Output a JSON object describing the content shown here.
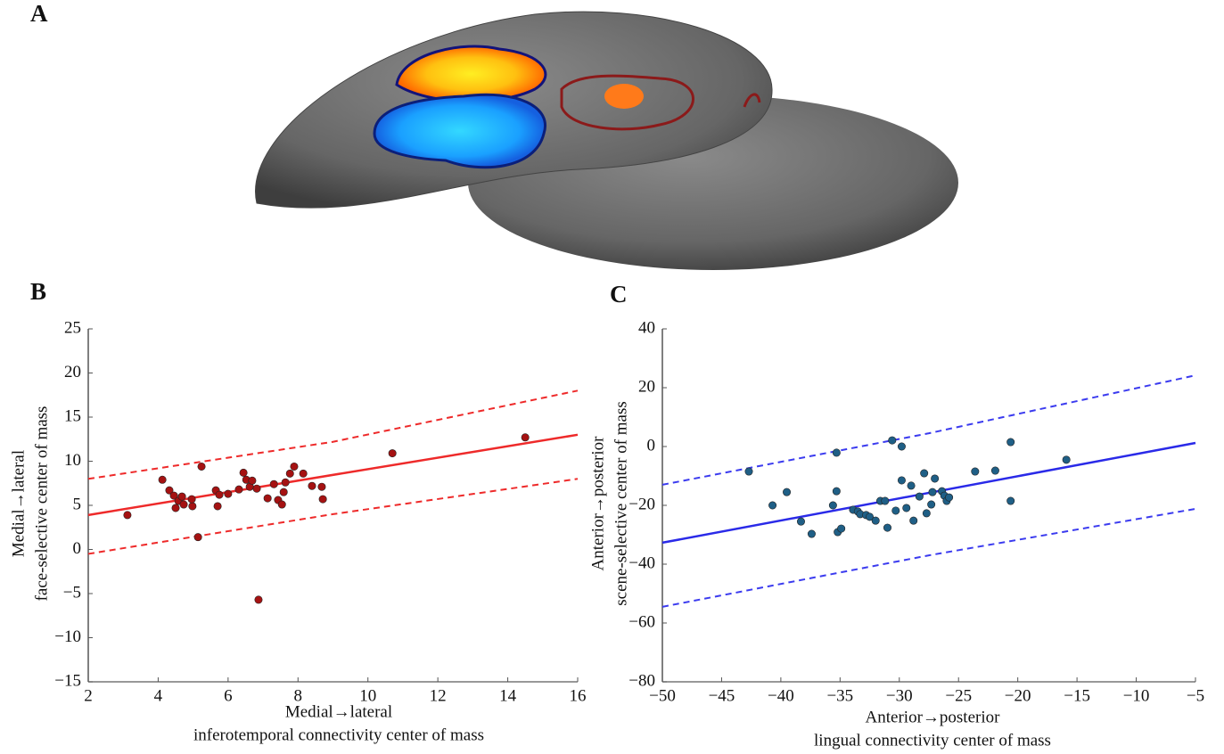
{
  "panels": {
    "a": "A"
  },
  "chart_data": [
    {
      "type": "scatter",
      "panel_label": "B",
      "xlabel": [
        "Medial→lateral",
        "inferotemporal connectivity center of mass"
      ],
      "ylabel": [
        "Medial→lateral",
        "face-selective center of mass"
      ],
      "xlim": [
        2,
        16
      ],
      "ylim": [
        -15,
        25
      ],
      "xticks": [
        2,
        4,
        6,
        8,
        10,
        12,
        14,
        16
      ],
      "yticks": [
        25,
        20,
        15,
        10,
        5,
        0,
        {
          "value": -5,
          "label": "−5"
        },
        {
          "value": -10,
          "label": "−10"
        },
        {
          "value": -15,
          "label": "−15"
        }
      ],
      "points": {
        "color": "#a51212",
        "x": [
          3.12,
          4.12,
          4.32,
          4.45,
          4.5,
          4.58,
          4.68,
          4.73,
          4.98,
          4.96,
          5.14,
          5.24,
          5.65,
          5.7,
          5.75,
          6.0,
          6.31,
          6.44,
          6.52,
          6.62,
          6.69,
          6.82,
          6.87,
          7.13,
          7.31,
          7.43,
          7.54,
          7.59,
          7.64,
          7.77,
          7.89,
          8.15,
          8.4,
          8.68,
          8.71,
          10.7,
          14.5
        ],
        "y": [
          3.9,
          7.9,
          6.7,
          6.1,
          4.7,
          5.5,
          6.0,
          5.1,
          4.9,
          5.7,
          1.4,
          9.4,
          6.7,
          4.9,
          6.2,
          6.3,
          6.8,
          8.7,
          7.9,
          7.1,
          7.8,
          6.9,
          -5.7,
          5.8,
          7.4,
          5.6,
          5.1,
          6.5,
          7.6,
          8.6,
          9.4,
          8.6,
          7.2,
          7.1,
          5.7,
          10.9,
          12.7
        ]
      },
      "fit": {
        "color": "#ee2a2a",
        "x": [
          2,
          16
        ],
        "y": [
          3.9,
          13.0
        ]
      },
      "ci_upper": {
        "color": "#ee2a2a",
        "x": [
          2,
          9,
          16
        ],
        "y": [
          8.0,
          12.2,
          18.0
        ]
      },
      "ci_lower": {
        "color": "#ee2a2a",
        "x": [
          2,
          9,
          16
        ],
        "y": [
          -0.5,
          4.0,
          8.0
        ]
      }
    },
    {
      "type": "scatter",
      "panel_label": "C",
      "xlabel": [
        "Anterior→posterior",
        "lingual connectivity center of mass"
      ],
      "ylabel": [
        "Anterior→posterior",
        "scene-selective center of mass"
      ],
      "xlim": [
        -50,
        -5
      ],
      "ylim": [
        -80,
        40
      ],
      "xticks": [
        {
          "value": -50,
          "label": "−50"
        },
        {
          "value": -45,
          "label": "−45"
        },
        {
          "value": -40,
          "label": "−40"
        },
        {
          "value": -35,
          "label": "−35"
        },
        {
          "value": -30,
          "label": "−30"
        },
        {
          "value": -25,
          "label": "−25"
        },
        {
          "value": -20,
          "label": "−20"
        },
        {
          "value": -15,
          "label": "−15"
        },
        {
          "value": -10,
          "label": "−10"
        },
        {
          "value": -5,
          "label": "−5"
        }
      ],
      "yticks": [
        40,
        20,
        0,
        {
          "value": -20,
          "label": "−20"
        },
        {
          "value": -40,
          "label": "−40"
        },
        {
          "value": -60,
          "label": "−60"
        },
        {
          "value": -80,
          "label": "−80"
        }
      ],
      "points": {
        "color": "#1f5f86",
        "x": [
          -42.7,
          -40.7,
          -39.5,
          -38.3,
          -37.4,
          -35.6,
          -35.2,
          -34.9,
          -35.3,
          -35.3,
          -33.9,
          -33.5,
          -33.3,
          -32.8,
          -32.5,
          -32.0,
          -31.6,
          -31.2,
          -31.0,
          -30.6,
          -30.3,
          -29.8,
          -29.8,
          -29.4,
          -29.0,
          -28.8,
          -28.3,
          -27.9,
          -27.7,
          -27.3,
          -27.0,
          -27.2,
          -26.4,
          -26.2,
          -26.0,
          -25.8,
          -23.6,
          -21.9,
          -20.6,
          -20.6,
          -15.9
        ],
        "y": [
          -8.5,
          -20,
          -15.5,
          -25.5,
          -29.7,
          -20,
          -29.1,
          -27.9,
          -2.1,
          -15.2,
          -21.5,
          -22.1,
          -23.0,
          -23.3,
          -23.9,
          -25.2,
          -18.5,
          -18.5,
          -27.6,
          2.1,
          -21.8,
          -11.5,
          0,
          -20.9,
          -13.3,
          -25.2,
          -17,
          -9.1,
          -22.7,
          -19.7,
          -10.9,
          -15.5,
          -15.2,
          -16.7,
          -18.5,
          -17.3,
          -8.5,
          -8.2,
          1.5,
          -18.5,
          -4.5
        ]
      },
      "fit": {
        "color": "#2a2ae8",
        "x": [
          -50,
          -5
        ],
        "y": [
          -32.7,
          1.2
        ]
      },
      "ci_upper": {
        "color": "#3b3bef",
        "x": [
          -50,
          -27.5,
          -5
        ],
        "y": [
          -13,
          4.5,
          24.2
        ]
      },
      "ci_lower": {
        "color": "#3b3bef",
        "x": [
          -50,
          -27.5,
          -5
        ],
        "y": [
          -54.5,
          -37,
          -21.2
        ]
      }
    }
  ]
}
